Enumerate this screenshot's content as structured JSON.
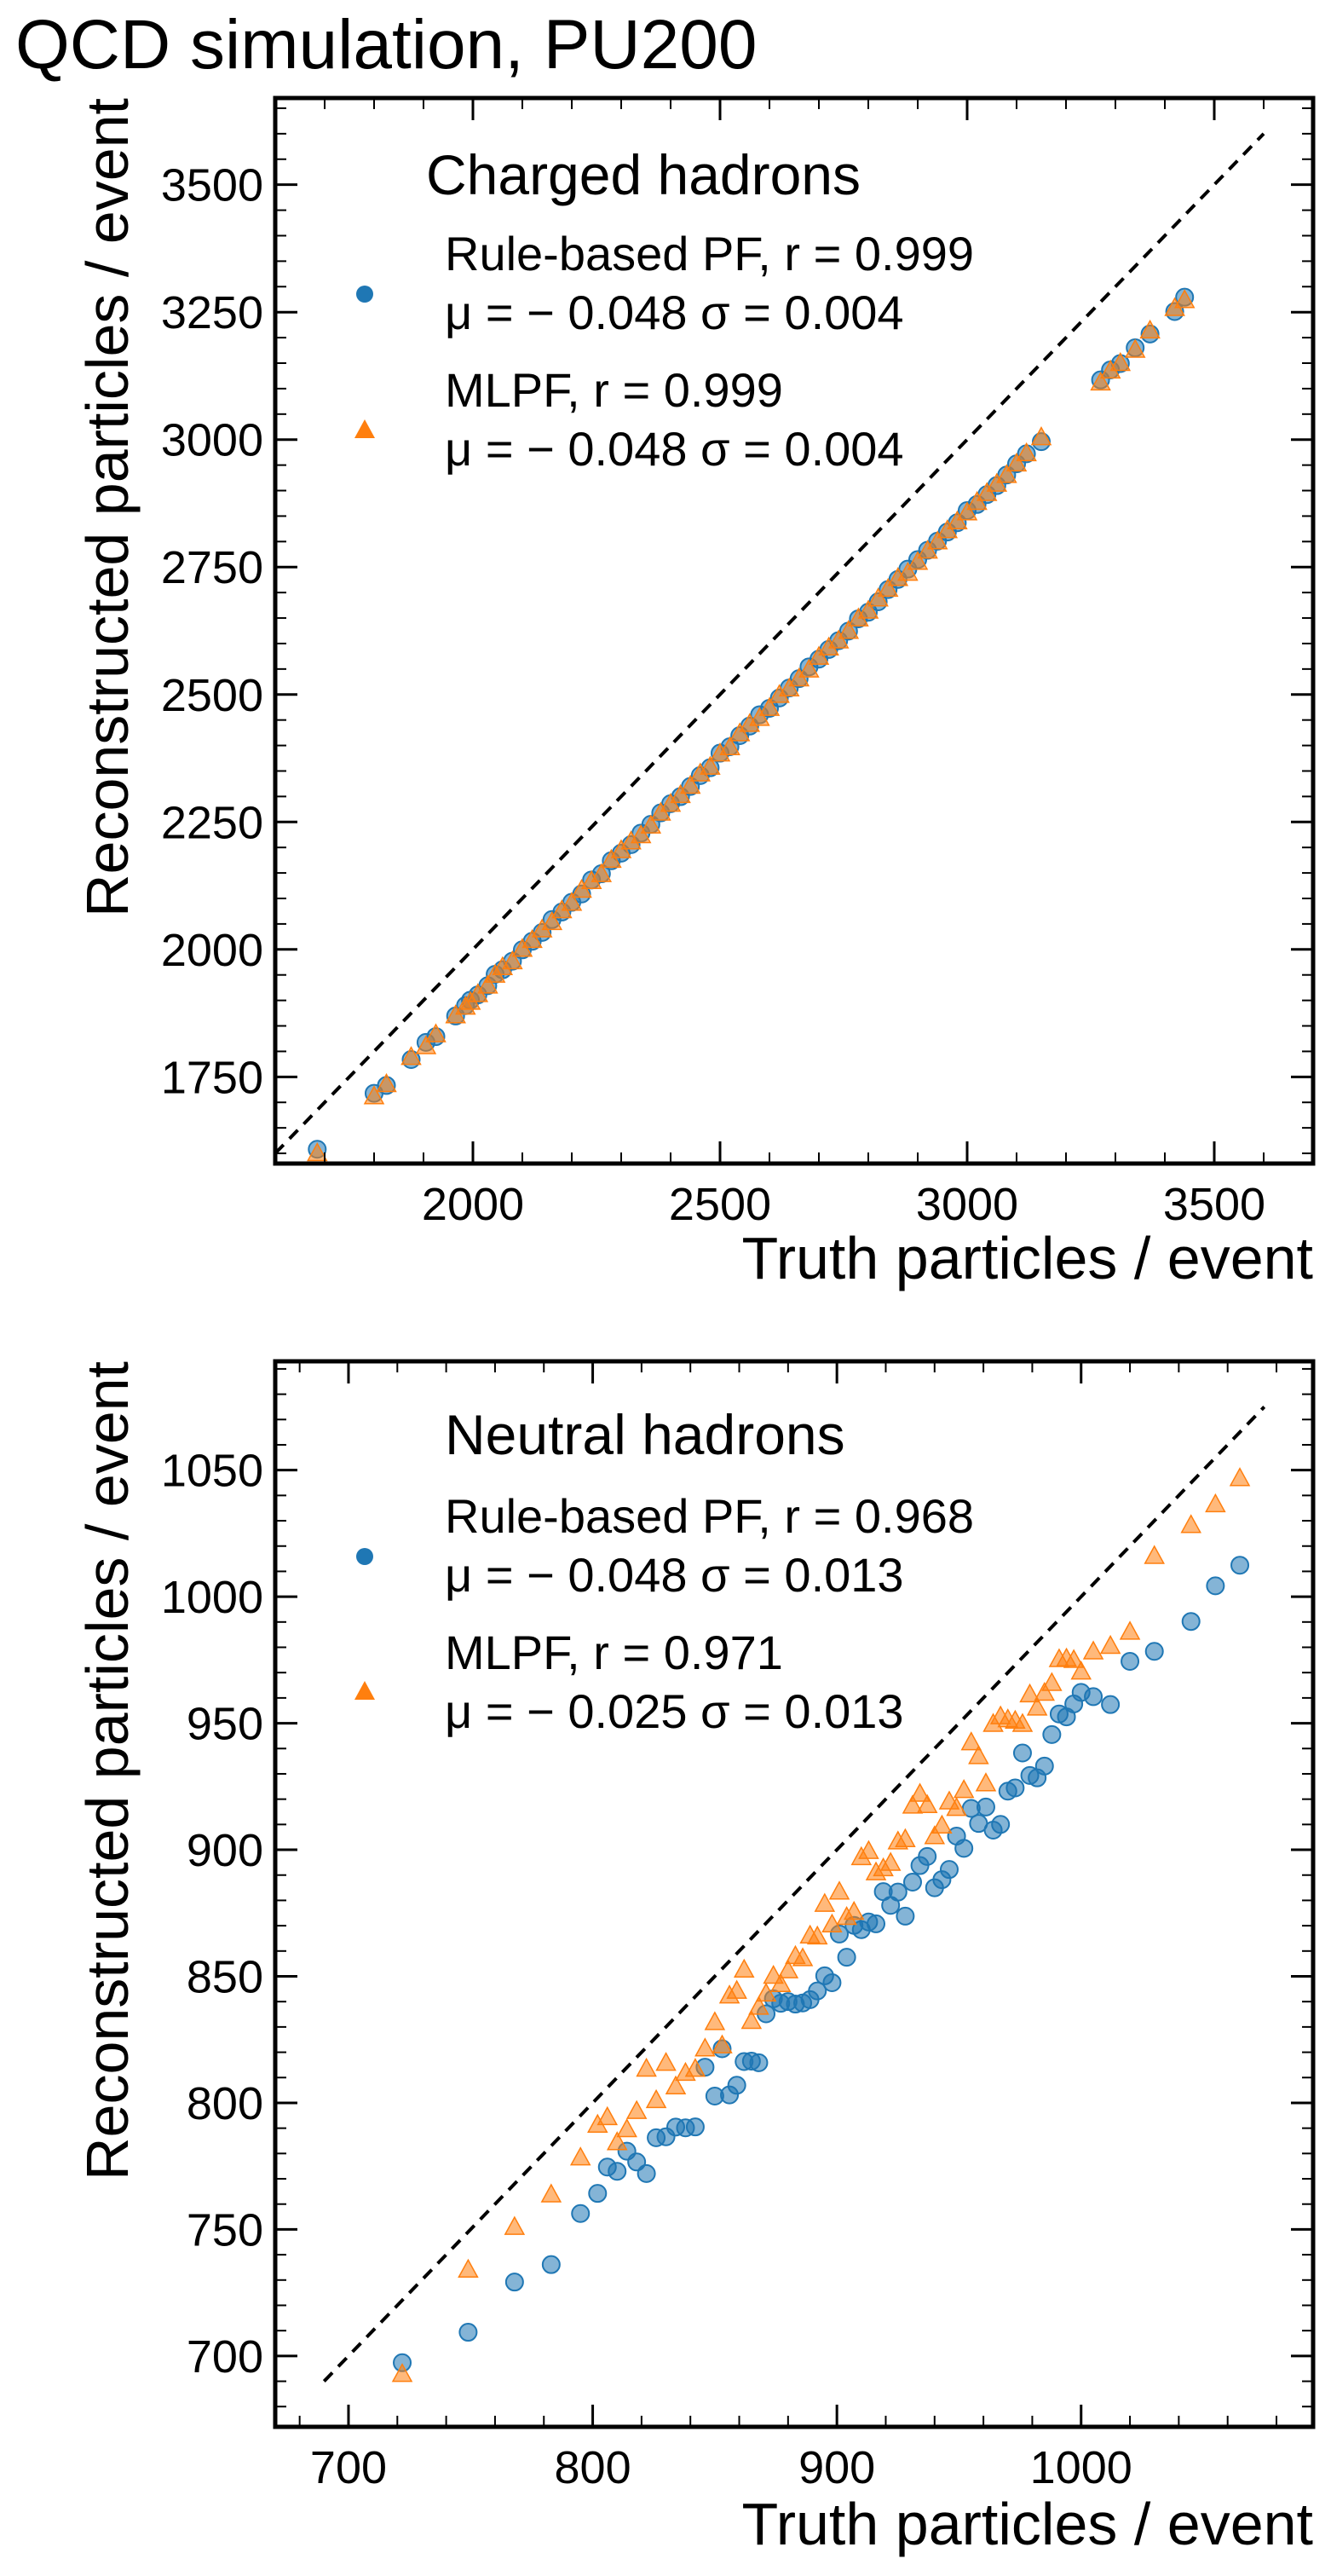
{
  "figure": {
    "title": "QCD simulation, PU200"
  },
  "colors": {
    "rule_based": "#1f77b4",
    "mlpf": "#ff7f0e",
    "diagonal": "#000000"
  },
  "chart_data": [
    {
      "type": "scatter",
      "panel": "top",
      "title": "Charged hadrons",
      "xlabel": "Truth particles / event",
      "ylabel": "Reconstructed particles / event",
      "xlim": [
        1600,
        3700
      ],
      "ylim": [
        1580,
        3670
      ],
      "xticks": [
        2000,
        2500,
        3000,
        3500
      ],
      "yticks": [
        1750,
        2000,
        2250,
        2500,
        2750,
        3000,
        3250,
        3500
      ],
      "diagonal": [
        1600,
        3600
      ],
      "legend_position": "top-left",
      "series": [
        {
          "name": "Rule-based PF",
          "legend_line1": "Rule-based PF, r = 0.999",
          "legend_line2": "μ = − 0.048 σ = 0.004",
          "marker": "circle",
          "color_key": "rule_based",
          "slope": 0.952,
          "intercept": 0,
          "noise": 5,
          "x": [
            1685,
            1800,
            1825,
            1875,
            1905,
            1925,
            1965,
            1985,
            1995,
            2010,
            2030,
            2045,
            2060,
            2080,
            2100,
            2120,
            2140,
            2160,
            2180,
            2200,
            2220,
            2240,
            2260,
            2280,
            2300,
            2320,
            2340,
            2360,
            2380,
            2400,
            2420,
            2440,
            2460,
            2480,
            2500,
            2520,
            2540,
            2560,
            2580,
            2600,
            2620,
            2640,
            2660,
            2680,
            2700,
            2720,
            2740,
            2760,
            2780,
            2800,
            2820,
            2840,
            2860,
            2880,
            2900,
            2920,
            2940,
            2960,
            2980,
            3000,
            3020,
            3040,
            3060,
            3080,
            3100,
            3120,
            3150,
            3270,
            3290,
            3310,
            3340,
            3370,
            3420,
            3440
          ]
        },
        {
          "name": "MLPF",
          "legend_line1": "MLPF, r = 0.999",
          "legend_line2": "μ = − 0.048 σ = 0.004",
          "marker": "triangle",
          "color_key": "mlpf",
          "slope": 0.952,
          "intercept": 0,
          "noise": 5,
          "x": [
            1685,
            1800,
            1825,
            1875,
            1905,
            1925,
            1965,
            1985,
            1995,
            2010,
            2030,
            2045,
            2060,
            2080,
            2100,
            2120,
            2140,
            2160,
            2180,
            2200,
            2220,
            2240,
            2260,
            2280,
            2300,
            2320,
            2340,
            2360,
            2380,
            2400,
            2420,
            2440,
            2460,
            2480,
            2500,
            2520,
            2540,
            2560,
            2580,
            2600,
            2620,
            2640,
            2660,
            2680,
            2700,
            2720,
            2740,
            2760,
            2780,
            2800,
            2820,
            2840,
            2860,
            2880,
            2900,
            2920,
            2940,
            2960,
            2980,
            3000,
            3020,
            3040,
            3060,
            3080,
            3100,
            3120,
            3150,
            3270,
            3290,
            3310,
            3340,
            3370,
            3420,
            3440
          ]
        }
      ]
    },
    {
      "type": "scatter",
      "panel": "bottom",
      "title": "Neutral hadrons",
      "xlabel": "Truth particles / event",
      "ylabel": "Reconstructed particles / event",
      "xlim": [
        670,
        1095
      ],
      "ylim": [
        672,
        1093
      ],
      "xticks": [
        700,
        800,
        900,
        1000
      ],
      "yticks": [
        700,
        750,
        800,
        850,
        900,
        950,
        1000,
        1050
      ],
      "diagonal": [
        690,
        1075
      ],
      "legend_position": "top-left",
      "series": [
        {
          "name": "Rule-based PF",
          "legend_line1": "Rule-based PF, r = 0.968",
          "legend_line2": "μ = − 0.048 σ = 0.013",
          "marker": "circle",
          "color_key": "rule_based",
          "slope": 0.952,
          "intercept": 0,
          "noise": 12,
          "x": [
            722,
            749,
            768,
            783,
            795,
            802,
            806,
            810,
            814,
            818,
            822,
            826,
            830,
            834,
            838,
            842,
            846,
            850,
            853,
            856,
            859,
            862,
            865,
            868,
            871,
            874,
            877,
            880,
            883,
            886,
            889,
            892,
            895,
            898,
            901,
            904,
            907,
            910,
            913,
            916,
            919,
            922,
            925,
            928,
            931,
            934,
            937,
            940,
            943,
            946,
            949,
            952,
            955,
            958,
            961,
            964,
            967,
            970,
            973,
            976,
            979,
            982,
            985,
            988,
            991,
            994,
            997,
            1000,
            1005,
            1012,
            1020,
            1030,
            1045,
            1055,
            1065
          ]
        },
        {
          "name": "MLPF",
          "legend_line1": "MLPF, r = 0.971",
          "legend_line2": "μ = − 0.025 σ = 0.013",
          "marker": "triangle",
          "color_key": "mlpf",
          "slope": 0.975,
          "intercept": 0,
          "noise": 12,
          "x": [
            722,
            749,
            768,
            783,
            795,
            802,
            806,
            810,
            814,
            818,
            822,
            826,
            830,
            834,
            838,
            842,
            846,
            850,
            853,
            856,
            859,
            862,
            865,
            868,
            871,
            874,
            877,
            880,
            883,
            886,
            889,
            892,
            895,
            898,
            901,
            904,
            907,
            910,
            913,
            916,
            919,
            922,
            925,
            928,
            931,
            934,
            937,
            940,
            943,
            946,
            949,
            952,
            955,
            958,
            961,
            964,
            967,
            970,
            973,
            976,
            979,
            982,
            985,
            988,
            991,
            994,
            997,
            1000,
            1005,
            1012,
            1020,
            1030,
            1045,
            1055,
            1065
          ]
        }
      ]
    }
  ]
}
